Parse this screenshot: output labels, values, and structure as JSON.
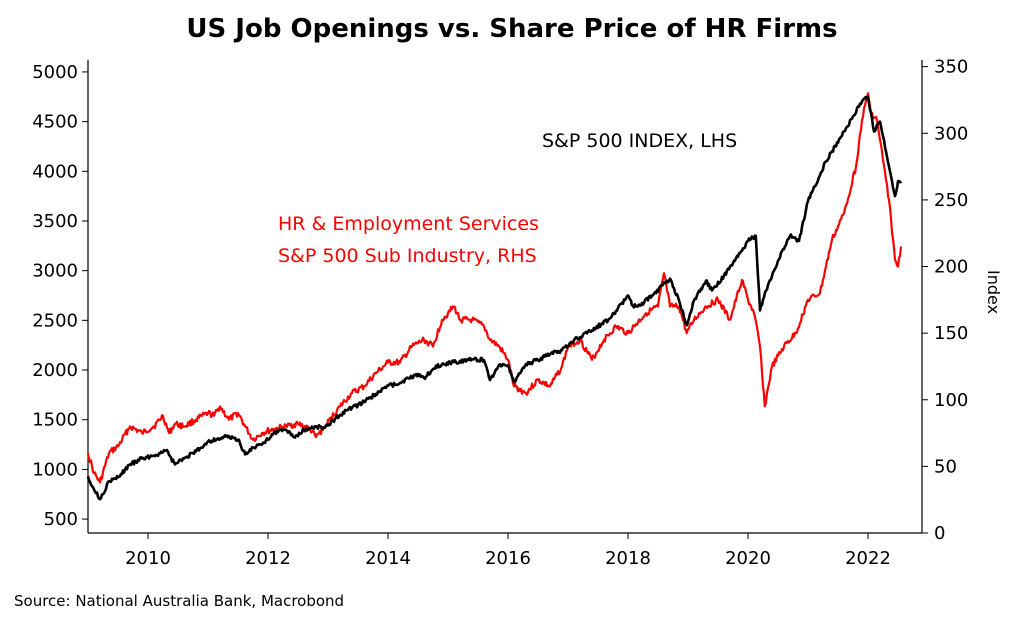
{
  "chart_data": {
    "type": "line",
    "title": "US Job Openings vs. Share Price of HR Firms",
    "source": "Source: National Australia Bank, Macrobond",
    "x_ticks": [
      "2010",
      "2012",
      "2014",
      "2016",
      "2018",
      "2020",
      "2022"
    ],
    "x_range": [
      2009.0,
      2022.9
    ],
    "left_axis": {
      "label": "",
      "range": [
        360,
        5120
      ],
      "ticks": [
        500,
        1000,
        1500,
        2000,
        2500,
        3000,
        3500,
        4000,
        4500,
        5000
      ]
    },
    "right_axis": {
      "label": "Index",
      "range": [
        0,
        355
      ],
      "ticks": [
        0,
        50,
        100,
        150,
        200,
        250,
        300,
        350
      ]
    },
    "annotations": {
      "sp500": "S&P 500 INDEX, LHS",
      "hr_line1": "HR & Employment Services",
      "hr_line2": "S&P 500 Sub Industry, RHS"
    },
    "colors": {
      "sp500": "#000000",
      "hr": "#ff0000"
    },
    "series": [
      {
        "key": "sp500",
        "axis": "left",
        "x": [
          2009.0,
          2009.1,
          2009.2,
          2009.35,
          2009.5,
          2009.7,
          2009.9,
          2010.1,
          2010.3,
          2010.45,
          2010.6,
          2010.8,
          2011.0,
          2011.3,
          2011.5,
          2011.62,
          2011.75,
          2011.9,
          2012.1,
          2012.3,
          2012.45,
          2012.6,
          2012.8,
          2012.95,
          2013.2,
          2013.4,
          2013.6,
          2013.8,
          2014.0,
          2014.2,
          2014.5,
          2014.6,
          2014.75,
          2014.9,
          2015.1,
          2015.4,
          2015.6,
          2015.7,
          2015.85,
          2016.0,
          2016.1,
          2016.3,
          2016.5,
          2016.7,
          2016.9,
          2017.1,
          2017.4,
          2017.7,
          2018.0,
          2018.08,
          2018.2,
          2018.4,
          2018.7,
          2018.85,
          2018.98,
          2019.1,
          2019.3,
          2019.4,
          2019.6,
          2019.9,
          2020.0,
          2020.13,
          2020.2,
          2020.3,
          2020.5,
          2020.7,
          2020.85,
          2021.0,
          2021.3,
          2021.6,
          2021.9,
          2022.0,
          2022.1,
          2022.2,
          2022.3,
          2022.4,
          2022.45,
          2022.5,
          2022.55
        ],
        "values": [
          930,
          800,
          700,
          880,
          920,
          1050,
          1110,
          1140,
          1190,
          1050,
          1110,
          1180,
          1280,
          1330,
          1300,
          1150,
          1220,
          1250,
          1370,
          1400,
          1320,
          1400,
          1430,
          1420,
          1550,
          1620,
          1680,
          1760,
          1840,
          1870,
          1960,
          1920,
          2010,
          2060,
          2080,
          2110,
          2100,
          1900,
          2050,
          2050,
          1880,
          2060,
          2100,
          2160,
          2200,
          2300,
          2400,
          2520,
          2750,
          2650,
          2650,
          2750,
          2920,
          2700,
          2450,
          2700,
          2900,
          2800,
          2950,
          3200,
          3300,
          3350,
          2600,
          2800,
          3100,
          3350,
          3300,
          3700,
          4100,
          4400,
          4700,
          4750,
          4400,
          4500,
          4200,
          3900,
          3750,
          3900,
          3880
        ]
      },
      {
        "key": "hr",
        "axis": "right",
        "x": [
          2009.0,
          2009.1,
          2009.2,
          2009.35,
          2009.5,
          2009.7,
          2009.9,
          2010.1,
          2010.25,
          2010.35,
          2010.45,
          2010.6,
          2010.8,
          2011.0,
          2011.1,
          2011.2,
          2011.35,
          2011.5,
          2011.62,
          2011.75,
          2011.9,
          2012.1,
          2012.3,
          2012.5,
          2012.7,
          2012.8,
          2012.95,
          2013.2,
          2013.4,
          2013.6,
          2013.8,
          2014.0,
          2014.2,
          2014.4,
          2014.6,
          2014.75,
          2014.9,
          2015.0,
          2015.1,
          2015.2,
          2015.4,
          2015.6,
          2015.7,
          2015.85,
          2016.0,
          2016.1,
          2016.3,
          2016.5,
          2016.7,
          2016.9,
          2017.0,
          2017.2,
          2017.4,
          2017.6,
          2017.8,
          2018.0,
          2018.3,
          2018.5,
          2018.6,
          2018.7,
          2018.85,
          2018.98,
          2019.1,
          2019.3,
          2019.5,
          2019.7,
          2019.9,
          2020.0,
          2020.1,
          2020.2,
          2020.28,
          2020.4,
          2020.6,
          2020.8,
          2021.0,
          2021.2,
          2021.4,
          2021.6,
          2021.8,
          2021.9,
          2022.0,
          2022.05,
          2022.15,
          2022.25,
          2022.35,
          2022.45,
          2022.5,
          2022.55
        ],
        "values": [
          60,
          45,
          38,
          60,
          65,
          80,
          75,
          80,
          88,
          75,
          82,
          80,
          85,
          90,
          88,
          95,
          85,
          90,
          80,
          70,
          75,
          78,
          80,
          82,
          78,
          72,
          80,
          95,
          105,
          110,
          120,
          128,
          128,
          140,
          145,
          140,
          160,
          165,
          170,
          160,
          160,
          155,
          145,
          140,
          130,
          110,
          105,
          115,
          110,
          125,
          140,
          145,
          130,
          145,
          155,
          150,
          165,
          170,
          195,
          170,
          170,
          150,
          160,
          170,
          175,
          160,
          190,
          175,
          165,
          140,
          95,
          125,
          140,
          150,
          175,
          180,
          220,
          240,
          275,
          310,
          330,
          315,
          310,
          280,
          250,
          205,
          200,
          215
        ]
      }
    ]
  }
}
